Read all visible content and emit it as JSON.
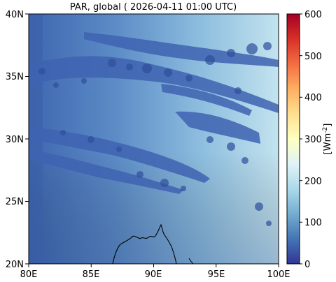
{
  "title": "PAR, global ( 2026-04-11 01:00 UTC)",
  "map": {
    "lat_ticks": [
      "40N",
      "35N",
      "30N",
      "25N",
      "20N"
    ],
    "lon_ticks": [
      "80E",
      "85E",
      "90E",
      "95E",
      "100E"
    ],
    "lat_range": [
      20,
      40
    ],
    "lon_range": [
      80,
      100
    ]
  },
  "colorbar": {
    "label": "[Wm^-2]",
    "ticks": [
      "600",
      "500",
      "400",
      "300",
      "200",
      "100",
      "0"
    ],
    "range": [
      0,
      600
    ],
    "colormap": "RdYlBu_r"
  },
  "colors": {
    "low": "#313695",
    "mid": "#ffffbf",
    "high": "#a50026",
    "field_west": "#4a78bc",
    "field_east": "#b6dcec"
  }
}
